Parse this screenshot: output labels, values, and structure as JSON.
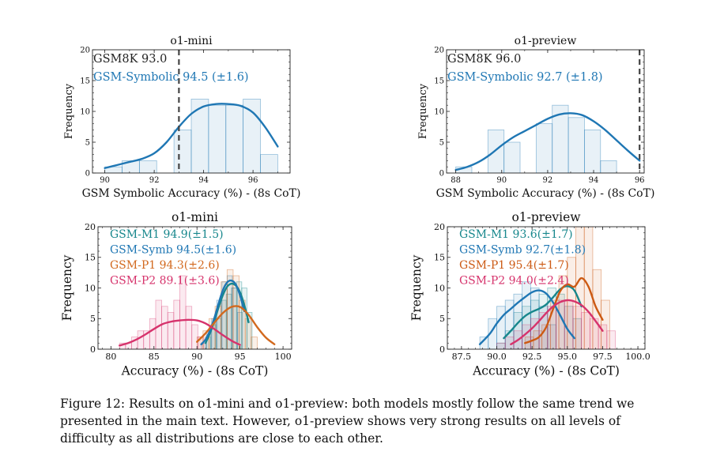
{
  "caption": "Figure 12: Results on o1-mini and o1-preview: both models mostly follow the same trend we presented in the main text. However, o1-preview shows very strong results on all levels of difficulty as all distributions are close to each other.",
  "chart_data": [
    {
      "type": "bar",
      "title": "o1-mini",
      "xlabel": "GSM Symbolic Accuracy (%) - (8s CoT)",
      "ylabel": "Frequency",
      "xlim": [
        89.5,
        97.5
      ],
      "ylim": [
        0,
        20
      ],
      "xticks": [
        90,
        92,
        94,
        96
      ],
      "yticks": [
        0,
        5,
        10,
        15,
        20
      ],
      "baseline_label": "GSM8K 93.0",
      "baseline_value": 93.0,
      "series": [
        {
          "name": "GSM-Symbolic 94.5 (±1.6)",
          "color": "#1f77b4",
          "bin_start": 90,
          "bin_width": 0.7,
          "counts": [
            1,
            2,
            2,
            0,
            7,
            12,
            11,
            11,
            12,
            3
          ],
          "kde": [
            [
              90,
              0.8
            ],
            [
              90.5,
              1.3
            ],
            [
              91,
              1.8
            ],
            [
              91.5,
              2.3
            ],
            [
              92,
              3.2
            ],
            [
              92.5,
              5.0
            ],
            [
              93,
              7.5
            ],
            [
              93.5,
              9.6
            ],
            [
              94,
              10.8
            ],
            [
              94.5,
              11.2
            ],
            [
              95,
              11.2
            ],
            [
              95.5,
              10.9
            ],
            [
              96,
              9.8
            ],
            [
              96.5,
              7.4
            ],
            [
              97,
              4.3
            ]
          ]
        }
      ]
    },
    {
      "type": "bar",
      "title": "o1-preview",
      "xlabel": "GSM Symbolic Accuracy (%) - (8s CoT)",
      "ylabel": "Frequency",
      "xlim": [
        87.6,
        96.2
      ],
      "ylim": [
        0,
        20
      ],
      "xticks": [
        88,
        90,
        92,
        94,
        96
      ],
      "yticks": [
        0,
        5,
        10,
        15,
        20
      ],
      "baseline_label": "GSM8K 96.0",
      "baseline_value": 96.0,
      "series": [
        {
          "name": "GSM-Symbolic 92.7 (±1.8)",
          "color": "#1f77b4",
          "bin_start": 88,
          "bin_width": 0.7,
          "counts": [
            1,
            0,
            7,
            5,
            0,
            8,
            11,
            9,
            7,
            2
          ],
          "kde": [
            [
              88,
              0.5
            ],
            [
              88.5,
              1.0
            ],
            [
              89,
              1.8
            ],
            [
              89.5,
              3.0
            ],
            [
              90,
              4.5
            ],
            [
              90.5,
              5.8
            ],
            [
              91,
              6.8
            ],
            [
              91.5,
              7.8
            ],
            [
              92,
              8.8
            ],
            [
              92.5,
              9.5
            ],
            [
              93,
              9.7
            ],
            [
              93.5,
              9.4
            ],
            [
              94,
              8.4
            ],
            [
              94.5,
              7.0
            ],
            [
              95,
              5.3
            ],
            [
              95.5,
              3.6
            ],
            [
              96,
              2.0
            ]
          ]
        }
      ]
    },
    {
      "type": "bar",
      "title": "o1-mini",
      "xlabel": "Accuracy (%) - (8s CoT)",
      "ylabel": "Frequency",
      "xlim": [
        78.5,
        101
      ],
      "ylim": [
        0,
        20
      ],
      "xticks": [
        80,
        85,
        90,
        95,
        100
      ],
      "yticks": [
        0,
        5,
        10,
        15,
        20
      ],
      "series": [
        {
          "name": "GSM-M1 94.9(±1.5)",
          "color": "#17878c",
          "bin_start": 91,
          "bin_width": 0.6,
          "counts": [
            2,
            4,
            5,
            8,
            9,
            10,
            11,
            10,
            6
          ],
          "kde": [
            [
              91,
              1.0
            ],
            [
              91.5,
              2.6
            ],
            [
              92,
              4.5
            ],
            [
              92.5,
              6.8
            ],
            [
              93,
              8.8
            ],
            [
              93.5,
              10.2
            ],
            [
              94,
              10.7
            ],
            [
              94.5,
              10.4
            ],
            [
              95,
              9.3
            ],
            [
              95.5,
              7.2
            ],
            [
              96,
              4.4
            ]
          ]
        },
        {
          "name": "GSM-Symb 94.5(±1.6)",
          "color": "#1f77b4",
          "bin_start": 90.5,
          "bin_width": 0.6,
          "counts": [
            1,
            3,
            5,
            8,
            11,
            12,
            10,
            6
          ],
          "kde": [
            [
              90.5,
              0.8
            ],
            [
              91,
              1.6
            ],
            [
              91.5,
              3.0
            ],
            [
              92,
              5.0
            ],
            [
              92.5,
              7.4
            ],
            [
              93,
              9.6
            ],
            [
              93.5,
              10.9
            ],
            [
              94,
              11.2
            ],
            [
              94.5,
              10.6
            ],
            [
              95,
              8.8
            ],
            [
              95.5,
              6.2
            ]
          ]
        },
        {
          "name": "GSM-P1 94.3(±2.6)",
          "color": "#d2691e",
          "bin_start": 90,
          "bin_width": 0.7,
          "counts": [
            2,
            3,
            5,
            7,
            11,
            13,
            12,
            8,
            5,
            2
          ],
          "kde": [
            [
              90,
              1.2
            ],
            [
              91,
              2.6
            ],
            [
              92,
              4.3
            ],
            [
              93,
              5.9
            ],
            [
              94,
              6.9
            ],
            [
              95,
              6.9
            ],
            [
              96,
              5.6
            ],
            [
              97,
              3.6
            ],
            [
              98,
              1.9
            ],
            [
              99,
              0.8
            ]
          ]
        },
        {
          "name": "GSM-P2 89.1(±3.6)",
          "color": "#d6336c",
          "bin_start": 81,
          "bin_width": 0.7,
          "counts": [
            1,
            1,
            2,
            3,
            3,
            5,
            8,
            7,
            6,
            8,
            12,
            7,
            4,
            2
          ],
          "kde": [
            [
              81,
              0.6
            ],
            [
              82,
              1.0
            ],
            [
              83,
              1.6
            ],
            [
              84,
              2.4
            ],
            [
              85,
              3.3
            ],
            [
              86,
              4.1
            ],
            [
              87,
              4.5
            ],
            [
              88,
              4.7
            ],
            [
              89,
              4.8
            ],
            [
              90,
              4.7
            ],
            [
              91,
              4.2
            ],
            [
              92,
              3.3
            ],
            [
              93,
              2.3
            ],
            [
              94,
              1.4
            ],
            [
              95,
              0.7
            ]
          ]
        }
      ]
    },
    {
      "type": "bar",
      "title": "o1-preview",
      "xlabel": "Accuracy (%) - (8s CoT)",
      "ylabel": "Frequency",
      "xlim": [
        86.5,
        100.5
      ],
      "ylim": [
        0,
        20
      ],
      "xticks": [
        87.5,
        90.0,
        92.5,
        95.0,
        97.5,
        100.0
      ],
      "yticks": [
        0,
        5,
        10,
        15,
        20
      ],
      "series": [
        {
          "name": "GSM-M1 93.6(±1.7)",
          "color": "#17878c",
          "bin_start": 90,
          "bin_width": 0.6,
          "counts": [
            1,
            3,
            6,
            7,
            8,
            9,
            10,
            9,
            7,
            5
          ],
          "kde": [
            [
              90.5,
              1.8
            ],
            [
              91,
              3.0
            ],
            [
              91.5,
              4.3
            ],
            [
              92,
              5.4
            ],
            [
              92.5,
              6.1
            ],
            [
              93,
              6.6
            ],
            [
              93.5,
              7.3
            ],
            [
              94,
              8.5
            ],
            [
              94.5,
              9.8
            ],
            [
              95,
              10.3
            ],
            [
              95.5,
              9.6
            ],
            [
              96,
              7.0
            ]
          ]
        },
        {
          "name": "GSM-Symb 92.7(±1.8)",
          "color": "#1f77b4",
          "bin_start": 88.8,
          "bin_width": 0.6,
          "counts": [
            2,
            5,
            7,
            8,
            9,
            11,
            10,
            7,
            4
          ],
          "kde": [
            [
              88.8,
              0.8
            ],
            [
              89.5,
              2.5
            ],
            [
              90,
              4.2
            ],
            [
              90.5,
              5.6
            ],
            [
              91,
              6.6
            ],
            [
              91.5,
              7.6
            ],
            [
              92,
              8.5
            ],
            [
              92.5,
              9.3
            ],
            [
              93,
              9.6
            ],
            [
              93.5,
              9.1
            ],
            [
              94,
              7.6
            ],
            [
              94.5,
              5.5
            ],
            [
              95,
              3.3
            ],
            [
              95.5,
              1.8
            ]
          ]
        },
        {
          "name": "GSM-P1 95.4(±1.7)",
          "color": "#cc5a14",
          "bin_start": 92,
          "bin_width": 0.6,
          "counts": [
            2,
            3,
            4,
            8,
            12,
            15,
            20,
            20,
            13,
            8
          ],
          "kde": [
            [
              92,
              1.0
            ],
            [
              92.5,
              1.4
            ],
            [
              93,
              2.0
            ],
            [
              93.5,
              3.6
            ],
            [
              94,
              6.6
            ],
            [
              94.5,
              9.5
            ],
            [
              95,
              10.6
            ],
            [
              95.5,
              10.2
            ],
            [
              96,
              11.6
            ],
            [
              96.5,
              10.2
            ],
            [
              97,
              7.0
            ],
            [
              97.5,
              4.8
            ]
          ]
        },
        {
          "name": "GSM-P2 94.0(±2.4)",
          "color": "#d6336c",
          "bin_start": 90,
          "bin_width": 0.6,
          "counts": [
            1,
            2,
            3,
            4,
            5,
            6,
            7,
            8,
            8,
            7,
            6,
            5,
            4,
            3
          ],
          "kde": [
            [
              91,
              0.8
            ],
            [
              91.5,
              1.5
            ],
            [
              92,
              2.4
            ],
            [
              92.5,
              3.4
            ],
            [
              93,
              4.6
            ],
            [
              93.5,
              5.9
            ],
            [
              94,
              7.0
            ],
            [
              94.5,
              7.7
            ],
            [
              95,
              8.0
            ],
            [
              95.5,
              7.8
            ],
            [
              96,
              7.2
            ],
            [
              96.5,
              6.1
            ],
            [
              97,
              4.6
            ],
            [
              97.5,
              3.0
            ]
          ]
        }
      ]
    }
  ]
}
